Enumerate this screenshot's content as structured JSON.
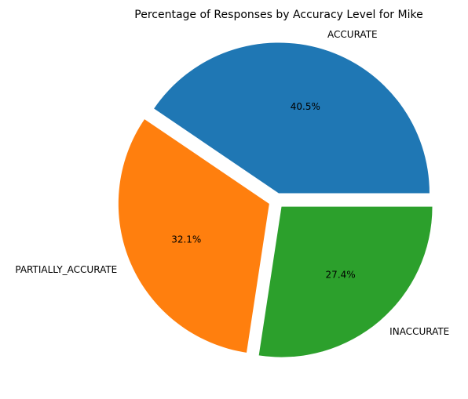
{
  "chart_data": {
    "type": "pie",
    "title": "Percentage of Responses by Accuracy Level for Mike",
    "slices": [
      {
        "label": "ACCURATE",
        "value": 40.5,
        "display": "40.5%",
        "color": "#1f77b4",
        "explode": true
      },
      {
        "label": "PARTIALLY_ACCURATE",
        "value": 32.1,
        "display": "32.1%",
        "color": "#ff7f0e",
        "explode": true
      },
      {
        "label": "INACCURATE",
        "value": 27.4,
        "display": "27.4%",
        "color": "#2ca02c",
        "explode": true
      }
    ],
    "start_angle": 0,
    "direction": "counterclockwise",
    "legend": "none"
  }
}
